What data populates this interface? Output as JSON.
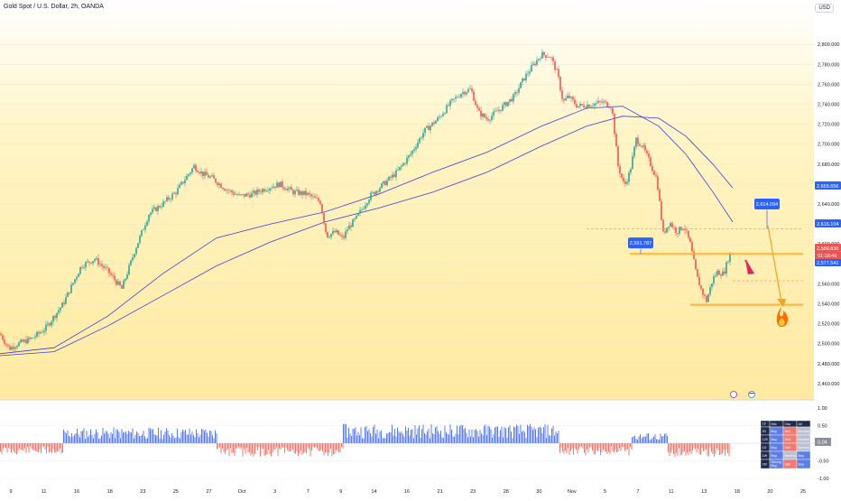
{
  "header": {
    "title": "Gold Spot / U.S. Dollar, 2h, OANDA",
    "currency": "USD"
  },
  "colors": {
    "bull": "#26a69a",
    "bear": "#ef5350",
    "ma": "#3f3fe0",
    "accent_blue": "#2962ff",
    "orange": "#f7a21b",
    "hline": "#ffa726",
    "osc_pos": "#5b7cf0",
    "osc_neg": "#f0796f"
  },
  "chart_data": {
    "type": "line",
    "title": "Gold Spot / U.S. Dollar, 2h, OANDA",
    "symbol": "XAUUSD",
    "timeframe": "2h",
    "price_axis": {
      "ylim": [
        2450,
        2830
      ],
      "ticks": [
        "2,800.000",
        "2,780.000",
        "2,760.000",
        "2,740.000",
        "2,720.000",
        "2,700.000",
        "2,680.000",
        "2,660.000",
        "2,640.000",
        "2,620.000",
        "2,600.000",
        "2,580.000",
        "2,560.000",
        "2,540.000",
        "2,520.000",
        "2,500.000",
        "2,480.000",
        "2,460.000"
      ]
    },
    "time_axis": {
      "ticks": [
        "9",
        "11",
        "16",
        "18",
        "23",
        "25",
        "27",
        "Oct",
        "3",
        "7",
        "9",
        "14",
        "16",
        "21",
        "23",
        "28",
        "30",
        "Nov",
        "5",
        "7",
        "11",
        "13",
        "18",
        "20",
        "25"
      ]
    },
    "price_series": {
      "name": "XAUUSD",
      "x": [
        0,
        10,
        20,
        35,
        50,
        70,
        90,
        105,
        120,
        135,
        150,
        165,
        180,
        195,
        205,
        215,
        225,
        235,
        250,
        265,
        280,
        295,
        310,
        325,
        340,
        355,
        362,
        372,
        380,
        385,
        395,
        410,
        425,
        440,
        455,
        470,
        485,
        500,
        512,
        522,
        530,
        540,
        555,
        570,
        580,
        590,
        600,
        610,
        618,
        624,
        630,
        640,
        655,
        668,
        678,
        685,
        692,
        698,
        705,
        712,
        720,
        728,
        735,
        742,
        750,
        758,
        765,
        772,
        778,
        783,
        790,
        795,
        802,
        808,
        811
      ],
      "y": [
        2510,
        2495,
        2500,
        2505,
        2515,
        2540,
        2578,
        2585,
        2572,
        2555,
        2595,
        2630,
        2640,
        2652,
        2665,
        2678,
        2670,
        2666,
        2655,
        2648,
        2650,
        2656,
        2660,
        2652,
        2650,
        2642,
        2608,
        2612,
        2605,
        2615,
        2626,
        2648,
        2660,
        2672,
        2690,
        2713,
        2725,
        2742,
        2752,
        2755,
        2732,
        2725,
        2736,
        2748,
        2765,
        2778,
        2790,
        2788,
        2770,
        2742,
        2748,
        2738,
        2740,
        2742,
        2738,
        2678,
        2658,
        2672,
        2705,
        2698,
        2682,
        2665,
        2610,
        2622,
        2612,
        2618,
        2600,
        2568,
        2552,
        2543,
        2565,
        2572,
        2570,
        2588,
        2591
      ]
    },
    "moving_averages": [
      {
        "x": [
          0,
          60,
          120,
          180,
          240,
          300,
          360,
          420,
          480,
          540,
          600,
          650,
          690,
          730,
          760,
          790,
          812
        ],
        "y": [
          2490,
          2496,
          2528,
          2570,
          2606,
          2620,
          2632,
          2650,
          2672,
          2692,
          2718,
          2736,
          2738,
          2718,
          2690,
          2652,
          2622
        ]
      },
      {
        "x": [
          0,
          60,
          120,
          180,
          240,
          300,
          360,
          420,
          480,
          540,
          600,
          650,
          690,
          730,
          760,
          790,
          812
        ],
        "y": [
          2488,
          2492,
          2518,
          2548,
          2578,
          2602,
          2622,
          2636,
          2652,
          2672,
          2698,
          2718,
          2728,
          2726,
          2708,
          2680,
          2656
        ]
      }
    ],
    "levels": [
      {
        "price": 2655.656,
        "label": "2,655.656",
        "color": "#2962ff"
      },
      {
        "price": 2616.104,
        "label": "2,616.104",
        "color": "#2962ff"
      },
      {
        "price": 2589.83,
        "label": "2,589.830",
        "color": "#ef5350"
      },
      {
        "price": 2577.541,
        "label": "2,577.541",
        "color": "#2962ff"
      }
    ],
    "countdown": "01:38:46",
    "hlines": [
      {
        "price": 2615,
        "from": 650,
        "to": 890,
        "dashed": true
      },
      {
        "price": 2590,
        "from": 698,
        "to": 890,
        "dashed": false,
        "thick": true
      },
      {
        "price": 2563,
        "from": 812,
        "to": 890,
        "dashed": true
      },
      {
        "price": 2539,
        "from": 765,
        "to": 890,
        "dashed": false,
        "thick": true
      }
    ],
    "callouts": [
      {
        "label": "2,591.787",
        "price": 2601,
        "x": 710
      },
      {
        "label": "2,614.094",
        "price": 2640,
        "x": 850
      }
    ],
    "oscillator": {
      "ylim": [
        -1.1,
        1.1
      ],
      "ticks": [
        "1.00",
        "0.50",
        "0.04",
        "-0.50",
        "-1.00"
      ],
      "current": "0.04",
      "segments": [
        {
          "from": 0,
          "to": 70,
          "sign": -1,
          "amp": 0.32
        },
        {
          "from": 70,
          "to": 240,
          "sign": 1,
          "amp": 0.45
        },
        {
          "from": 240,
          "to": 380,
          "sign": -1,
          "amp": 0.38
        },
        {
          "from": 380,
          "to": 620,
          "sign": 1,
          "amp": 0.55
        },
        {
          "from": 620,
          "to": 700,
          "sign": -1,
          "amp": 0.35
        },
        {
          "from": 700,
          "to": 740,
          "sign": 1,
          "amp": 0.3
        },
        {
          "from": 740,
          "to": 808,
          "sign": -1,
          "amp": 0.4
        }
      ]
    },
    "signal_table": {
      "headers": [
        "TF",
        "Mtx",
        "Osc",
        "All"
      ],
      "rows": [
        [
          "30",
          "Buy",
          "Sell",
          "Neutral"
        ],
        [
          "120",
          "Buy",
          "Sell",
          "Neutral"
        ],
        [
          "1D",
          "Buy",
          "Sell",
          "Neutral"
        ],
        [
          "1W",
          "Buy",
          "Neutral",
          "Buy"
        ],
        [
          "1M",
          "Strong Buy",
          "Sell",
          "Buy"
        ]
      ]
    }
  }
}
